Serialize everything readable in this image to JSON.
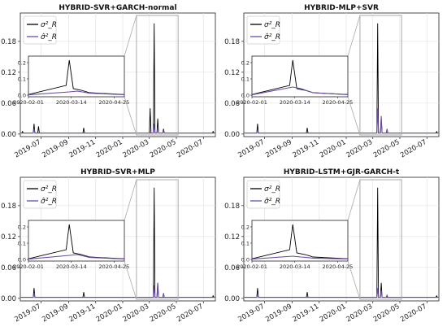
{
  "chart_data": [
    {
      "type": "line",
      "title": "HYBRID-SVR+GARCH-normal",
      "legend": {
        "placement": "top-left",
        "entries": [
          "σ²_R",
          "σ̂²_R"
        ]
      },
      "xticks": [
        "2019-07",
        "2019-09",
        "2019-11",
        "2020-01",
        "2020-03",
        "2020-05",
        "2020-07"
      ],
      "yticks": [
        "0.00",
        "0.06",
        "0.12",
        "0.18"
      ],
      "ylim": [
        -0.005,
        0.235
      ],
      "grid": true,
      "series": [
        {
          "color": "#000000",
          "points": [
            [
              "2019-05-20",
              0.005
            ],
            [
              "2019-06-15",
              0.02
            ],
            [
              "2019-06-25",
              0.015
            ],
            [
              "2019-10-05",
              0.012
            ],
            [
              "2020-03-03",
              0.05
            ],
            [
              "2020-03-12",
              0.215
            ],
            [
              "2020-03-20",
              0.03
            ],
            [
              "2020-04-02",
              0.01
            ],
            [
              "2020-07-23",
              0.005
            ]
          ]
        },
        {
          "color": "#6a4aa5",
          "points": [
            [
              "2019-06-15",
              0.01
            ],
            [
              "2020-03-12",
              0.02
            ],
            [
              "2020-03-20",
              0.012
            ],
            [
              "2020-04-02",
              0.006
            ]
          ]
        }
      ],
      "inset": {
        "xticks": [
          "2020-02-01",
          "2020-03-14",
          "2020-04-25"
        ],
        "yticks": [
          "0.0",
          "0.1",
          "0.2"
        ],
        "xlim": [
          "2020-02-01",
          "2020-05-05"
        ],
        "ylim": [
          -0.01,
          0.24
        ],
        "series": [
          {
            "color": "#000000",
            "points": [
              [
                "2020-02-01",
                0.004
              ],
              [
                "2020-03-09",
                0.06
              ],
              [
                "2020-03-12",
                0.215
              ],
              [
                "2020-03-16",
                0.04
              ],
              [
                "2020-03-24",
                0.03
              ],
              [
                "2020-04-01",
                0.015
              ],
              [
                "2020-05-05",
                0.004
              ]
            ]
          },
          {
            "color": "#6a4aa5",
            "points": [
              [
                "2020-02-01",
                0.002
              ],
              [
                "2020-03-12",
                0.02
              ],
              [
                "2020-03-20",
                0.025
              ],
              [
                "2020-04-01",
                0.012
              ],
              [
                "2020-05-05",
                0.003
              ]
            ]
          }
        ]
      }
    },
    {
      "type": "line",
      "title": "HYBRID-MLP+SVR",
      "legend": {
        "placement": "top-left",
        "entries": [
          "σ²_R",
          "σ̂²_R"
        ]
      },
      "xticks": [
        "2019-07",
        "2019-09",
        "2019-11",
        "2020-01",
        "2020-03",
        "2020-05",
        "2020-07"
      ],
      "yticks": [
        "0.00",
        "0.06",
        "0.12",
        "0.18"
      ],
      "ylim": [
        -0.005,
        0.235
      ],
      "grid": true,
      "series": [
        {
          "color": "#000000",
          "points": [
            [
              "2019-06-15",
              0.02
            ],
            [
              "2019-10-05",
              0.012
            ],
            [
              "2020-03-12",
              0.215
            ],
            [
              "2020-03-20",
              0.03
            ],
            [
              "2020-07-23",
              0.005
            ]
          ]
        },
        {
          "color": "#6a4aa5",
          "points": [
            [
              "2019-06-15",
              0.008
            ],
            [
              "2020-03-12",
              0.05
            ],
            [
              "2020-03-20",
              0.035
            ],
            [
              "2020-04-02",
              0.01
            ]
          ]
        }
      ],
      "inset": {
        "xticks": [
          "2020-02-01",
          "2020-03-14",
          "2020-04-25"
        ],
        "yticks": [
          "0.0",
          "0.1",
          "0.2"
        ],
        "xlim": [
          "2020-02-01",
          "2020-05-05"
        ],
        "ylim": [
          -0.01,
          0.24
        ],
        "series": [
          {
            "color": "#000000",
            "points": [
              [
                "2020-02-01",
                0.004
              ],
              [
                "2020-03-09",
                0.06
              ],
              [
                "2020-03-12",
                0.215
              ],
              [
                "2020-03-16",
                0.04
              ],
              [
                "2020-03-24",
                0.03
              ],
              [
                "2020-04-01",
                0.015
              ],
              [
                "2020-05-05",
                0.004
              ]
            ]
          },
          {
            "color": "#6a4aa5",
            "points": [
              [
                "2020-02-01",
                0.002
              ],
              [
                "2020-03-12",
                0.05
              ],
              [
                "2020-03-20",
                0.04
              ],
              [
                "2020-04-01",
                0.015
              ],
              [
                "2020-05-05",
                0.003
              ]
            ]
          }
        ]
      }
    },
    {
      "type": "line",
      "title": "HYBRID-SVR+MLP",
      "legend": {
        "placement": "top-left",
        "entries": [
          "σ²_R",
          "σ̂²_R"
        ]
      },
      "xticks": [
        "2019-07",
        "2019-09",
        "2019-11",
        "2020-01",
        "2020-03",
        "2020-05",
        "2020-07"
      ],
      "yticks": [
        "0.00",
        "0.06",
        "0.12",
        "0.18"
      ],
      "ylim": [
        -0.005,
        0.235
      ],
      "grid": true,
      "series": [
        {
          "color": "#000000",
          "points": [
            [
              "2019-06-15",
              0.02
            ],
            [
              "2019-10-05",
              0.012
            ],
            [
              "2020-03-12",
              0.215
            ],
            [
              "2020-03-20",
              0.03
            ],
            [
              "2020-07-23",
              0.005
            ]
          ]
        },
        {
          "color": "#6a4aa5",
          "points": [
            [
              "2019-06-15",
              0.01
            ],
            [
              "2020-03-12",
              0.025
            ],
            [
              "2020-03-20",
              0.03
            ],
            [
              "2020-04-02",
              0.01
            ]
          ]
        }
      ],
      "inset": {
        "xticks": [
          "2020-02-01",
          "2020-03-14",
          "2020-04-25"
        ],
        "yticks": [
          "0.0",
          "0.1",
          "0.2"
        ],
        "xlim": [
          "2020-02-01",
          "2020-05-05"
        ],
        "ylim": [
          -0.01,
          0.24
        ],
        "series": [
          {
            "color": "#000000",
            "points": [
              [
                "2020-02-01",
                0.004
              ],
              [
                "2020-03-09",
                0.06
              ],
              [
                "2020-03-12",
                0.215
              ],
              [
                "2020-03-16",
                0.04
              ],
              [
                "2020-03-24",
                0.03
              ],
              [
                "2020-04-01",
                0.015
              ],
              [
                "2020-05-05",
                0.004
              ]
            ]
          },
          {
            "color": "#6a4aa5",
            "points": [
              [
                "2020-02-01",
                0.002
              ],
              [
                "2020-03-12",
                0.025
              ],
              [
                "2020-03-20",
                0.03
              ],
              [
                "2020-04-01",
                0.012
              ],
              [
                "2020-05-05",
                0.003
              ]
            ]
          }
        ]
      }
    },
    {
      "type": "line",
      "title": "HYBRID-LSTM+GJR-GARCH-t",
      "legend": {
        "placement": "top-left",
        "entries": [
          "σ²_R",
          "σ̂²_R"
        ]
      },
      "xticks": [
        "2019-07",
        "2019-09",
        "2019-11",
        "2020-01",
        "2020-03",
        "2020-05",
        "2020-07"
      ],
      "yticks": [
        "0.00",
        "0.06",
        "0.12",
        "0.18"
      ],
      "ylim": [
        -0.005,
        0.235
      ],
      "grid": true,
      "series": [
        {
          "color": "#000000",
          "points": [
            [
              "2019-06-15",
              0.02
            ],
            [
              "2019-10-05",
              0.012
            ],
            [
              "2020-03-12",
              0.215
            ],
            [
              "2020-03-20",
              0.03
            ],
            [
              "2020-07-23",
              0.005
            ]
          ]
        },
        {
          "color": "#6a4aa5",
          "points": [
            [
              "2019-06-15",
              0.008
            ],
            [
              "2020-03-12",
              0.02
            ],
            [
              "2020-03-20",
              0.015
            ],
            [
              "2020-04-02",
              0.006
            ]
          ]
        }
      ],
      "inset": {
        "xticks": [
          "2020-02-01",
          "2020-03-14",
          "2020-04-25"
        ],
        "yticks": [
          "0.0",
          "0.1",
          "0.2"
        ],
        "xlim": [
          "2020-02-01",
          "2020-05-05"
        ],
        "ylim": [
          -0.01,
          0.24
        ],
        "series": [
          {
            "color": "#000000",
            "points": [
              [
                "2020-02-01",
                0.004
              ],
              [
                "2020-03-09",
                0.06
              ],
              [
                "2020-03-12",
                0.215
              ],
              [
                "2020-03-16",
                0.04
              ],
              [
                "2020-03-24",
                0.03
              ],
              [
                "2020-04-01",
                0.015
              ],
              [
                "2020-05-05",
                0.004
              ]
            ]
          },
          {
            "color": "#6a4aa5",
            "points": [
              [
                "2020-02-01",
                0.002
              ],
              [
                "2020-03-12",
                0.02
              ],
              [
                "2020-03-20",
                0.015
              ],
              [
                "2020-04-01",
                0.008
              ],
              [
                "2020-05-05",
                0.003
              ]
            ]
          }
        ]
      }
    }
  ]
}
